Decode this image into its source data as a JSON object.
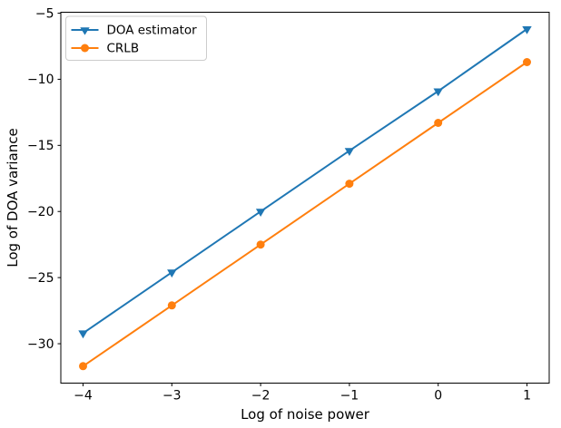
{
  "chart_data": {
    "type": "line",
    "title": "",
    "xlabel": "Log of noise power",
    "ylabel": "Log of DOA variance",
    "x": [
      -4,
      -3,
      -2,
      -1,
      0,
      1
    ],
    "series": [
      {
        "name": "DOA estimator",
        "color": "#1f77b4",
        "marker": "triangle-down",
        "values": [
          -29.2,
          -24.6,
          -20.0,
          -15.4,
          -10.9,
          -6.2
        ]
      },
      {
        "name": "CRLB",
        "color": "#ff7f0e",
        "marker": "circle",
        "values": [
          -31.7,
          -27.1,
          -22.5,
          -17.9,
          -13.3,
          -8.7
        ]
      }
    ],
    "xticks": {
      "values": [
        -4,
        -3,
        -2,
        -1,
        0,
        1
      ],
      "labels": [
        "−4",
        "−3",
        "−2",
        "−1",
        "0",
        "1"
      ]
    },
    "yticks": {
      "values": [
        -5,
        -10,
        -15,
        -20,
        -25,
        -30
      ],
      "labels": [
        "−5",
        "−10",
        "−15",
        "−20",
        "−25",
        "−30"
      ]
    },
    "xlim": [
      -4.25,
      1.25
    ],
    "ylim": [
      -32.98,
      -4.93
    ],
    "grid": false,
    "legend": {
      "position": "upper-left"
    },
    "spine_color": "#000000",
    "legend_border_color": "#cccccc",
    "legend_background": "#ffffff"
  }
}
